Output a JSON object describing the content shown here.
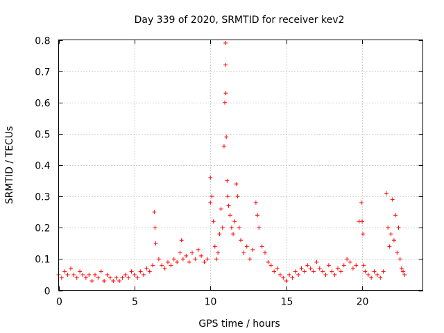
{
  "chart_data": {
    "type": "scatter",
    "title": "Day 339 of 2020, SRMTID for receiver kev2",
    "xlabel": "GPS time / hours",
    "ylabel": "SRMTID / TECUs",
    "xlim": [
      0,
      24
    ],
    "ylim": [
      0,
      0.8
    ],
    "xticks": [
      0,
      5,
      10,
      15,
      20
    ],
    "xtick_labels": [
      "0",
      "5",
      "10",
      "15",
      "20"
    ],
    "yticks": [
      0,
      0.1,
      0.2,
      0.3,
      0.4,
      0.5,
      0.6,
      0.7,
      0.8
    ],
    "ytick_labels": [
      "0",
      "0.1",
      "0.2",
      "0.3",
      "0.4",
      "0.5",
      "0.6",
      "0.7",
      "0.8"
    ],
    "grid": true,
    "marker": "plus",
    "color": "#ff0000",
    "series": [
      {
        "name": "SRMTID",
        "x": [
          0.0,
          0.2,
          0.4,
          0.6,
          0.8,
          1.0,
          1.2,
          1.4,
          1.6,
          1.8,
          2.0,
          2.2,
          2.4,
          2.6,
          2.8,
          3.0,
          3.2,
          3.4,
          3.6,
          3.8,
          4.0,
          4.2,
          4.4,
          4.6,
          4.8,
          5.0,
          5.2,
          5.4,
          5.6,
          5.8,
          6.0,
          6.2,
          6.3,
          6.35,
          6.4,
          6.6,
          6.8,
          7.0,
          7.2,
          7.4,
          7.6,
          7.8,
          8.0,
          8.1,
          8.2,
          8.4,
          8.6,
          8.8,
          9.0,
          9.2,
          9.4,
          9.6,
          9.8,
          10.0,
          10.0,
          10.1,
          10.2,
          10.3,
          10.4,
          10.5,
          10.6,
          10.7,
          10.8,
          10.9,
          10.95,
          11.0,
          11.0,
          11.02,
          11.05,
          11.1,
          11.15,
          11.2,
          11.3,
          11.4,
          11.5,
          11.6,
          11.7,
          11.8,
          11.9,
          12.0,
          12.2,
          12.4,
          12.6,
          12.8,
          13.0,
          13.1,
          13.2,
          13.4,
          13.6,
          13.8,
          14.0,
          14.2,
          14.4,
          14.6,
          14.8,
          15.0,
          15.2,
          15.4,
          15.6,
          15.8,
          16.0,
          16.2,
          16.4,
          16.6,
          16.8,
          17.0,
          17.2,
          17.4,
          17.6,
          17.8,
          18.0,
          18.2,
          18.4,
          18.6,
          18.8,
          19.0,
          19.2,
          19.4,
          19.6,
          19.8,
          19.95,
          20.0,
          20.05,
          20.1,
          20.2,
          20.4,
          20.6,
          20.8,
          21.0,
          21.2,
          21.4,
          21.6,
          21.7,
          21.8,
          21.9,
          22.0,
          22.1,
          22.2,
          22.3,
          22.4,
          22.5,
          22.6,
          22.7,
          22.8
        ],
        "y": [
          0.05,
          0.04,
          0.06,
          0.05,
          0.07,
          0.05,
          0.04,
          0.06,
          0.05,
          0.04,
          0.05,
          0.03,
          0.05,
          0.04,
          0.06,
          0.03,
          0.05,
          0.04,
          0.03,
          0.04,
          0.03,
          0.04,
          0.05,
          0.04,
          0.06,
          0.05,
          0.04,
          0.06,
          0.05,
          0.07,
          0.06,
          0.08,
          0.25,
          0.2,
          0.15,
          0.1,
          0.08,
          0.07,
          0.09,
          0.08,
          0.1,
          0.09,
          0.12,
          0.16,
          0.1,
          0.11,
          0.09,
          0.12,
          0.1,
          0.13,
          0.11,
          0.09,
          0.1,
          0.36,
          0.28,
          0.3,
          0.22,
          0.14,
          0.1,
          0.12,
          0.18,
          0.26,
          0.2,
          0.46,
          0.6,
          0.79,
          0.72,
          0.63,
          0.49,
          0.35,
          0.3,
          0.27,
          0.24,
          0.2,
          0.18,
          0.22,
          0.34,
          0.3,
          0.2,
          0.16,
          0.12,
          0.14,
          0.1,
          0.13,
          0.28,
          0.24,
          0.2,
          0.14,
          0.12,
          0.09,
          0.08,
          0.06,
          0.07,
          0.05,
          0.04,
          0.03,
          0.05,
          0.04,
          0.06,
          0.05,
          0.07,
          0.06,
          0.08,
          0.07,
          0.06,
          0.09,
          0.07,
          0.06,
          0.05,
          0.08,
          0.06,
          0.05,
          0.07,
          0.06,
          0.08,
          0.1,
          0.09,
          0.07,
          0.08,
          0.22,
          0.28,
          0.22,
          0.18,
          0.08,
          0.06,
          0.05,
          0.04,
          0.06,
          0.05,
          0.04,
          0.06,
          0.31,
          0.2,
          0.14,
          0.18,
          0.29,
          0.16,
          0.24,
          0.12,
          0.2,
          0.1,
          0.07,
          0.06,
          0.05
        ]
      }
    ]
  }
}
